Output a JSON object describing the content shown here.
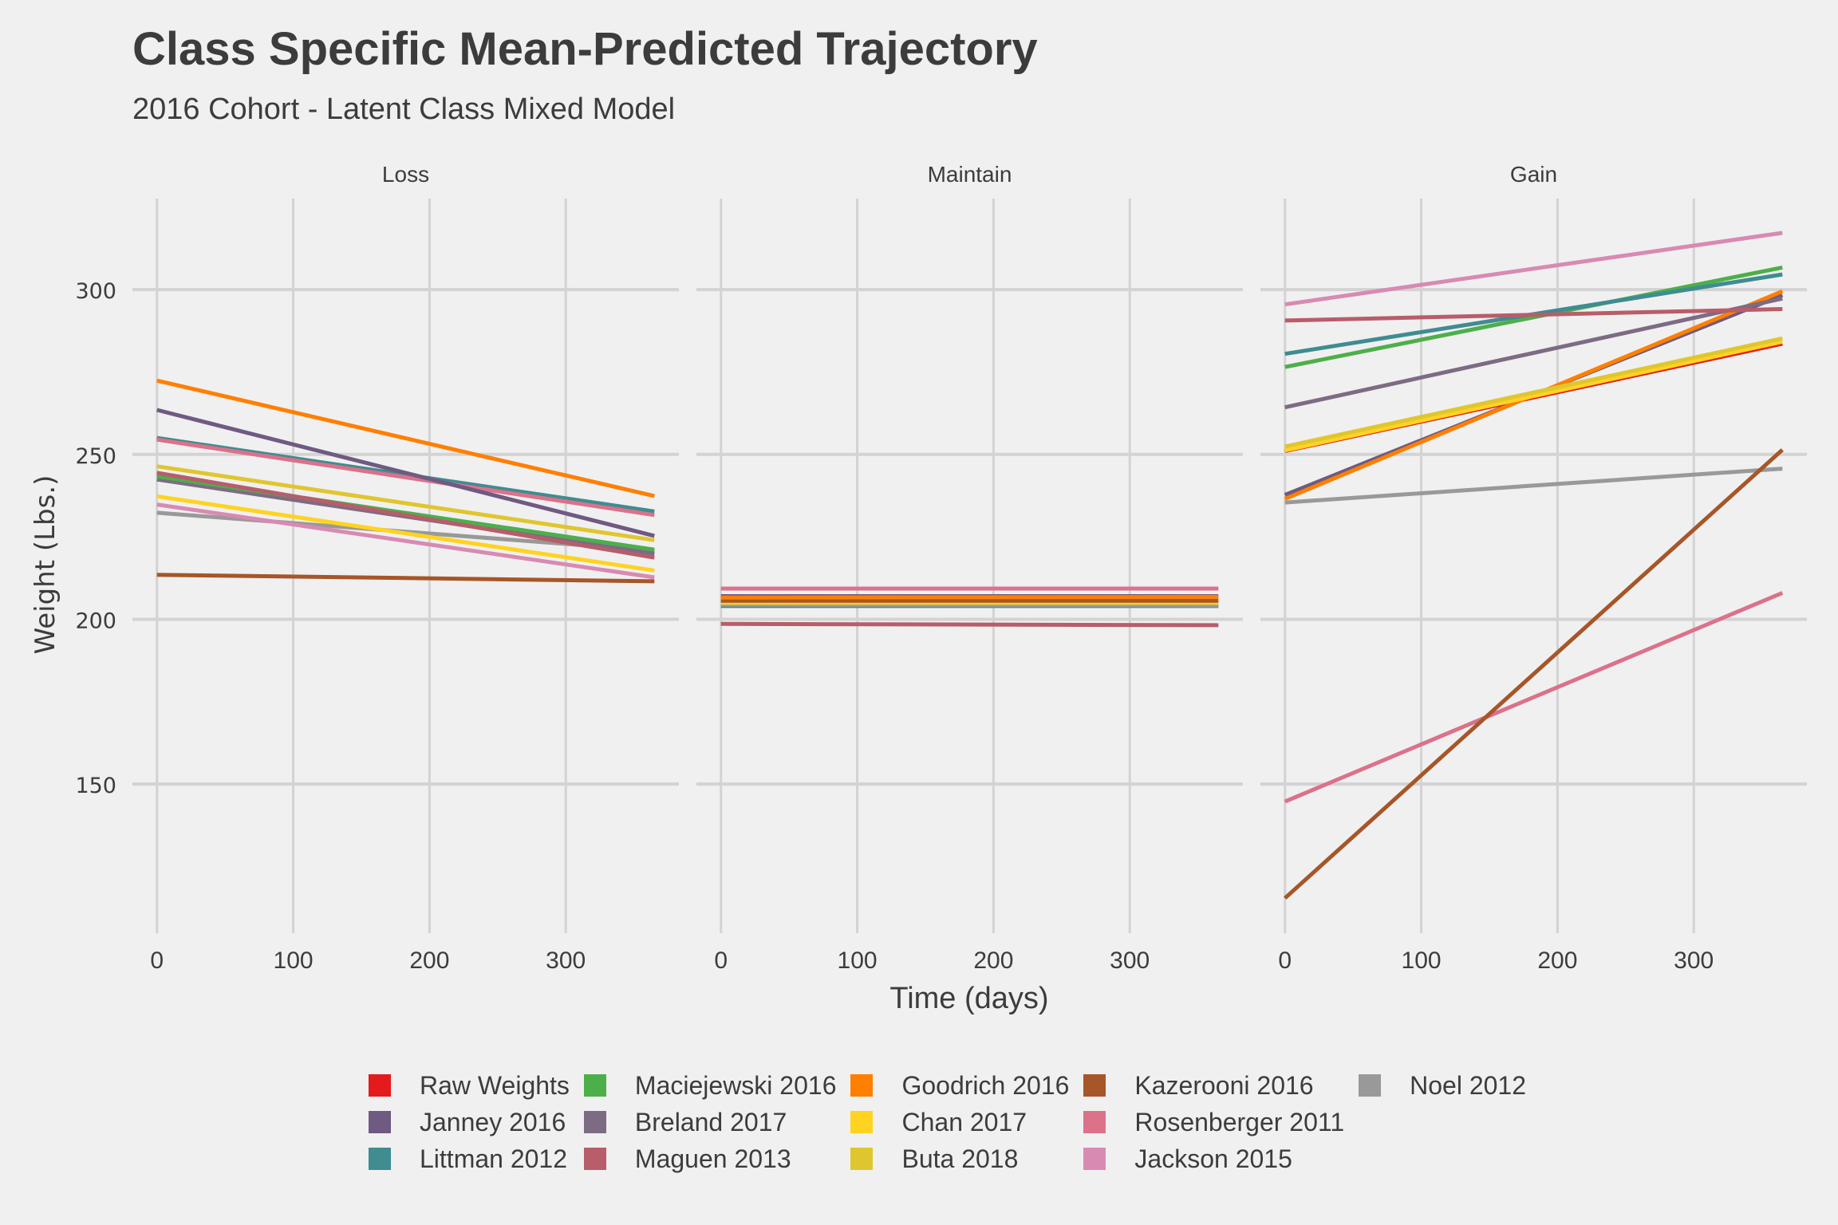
{
  "chart_data": {
    "type": "line",
    "title": "Class Specific Mean-Predicted Trajectory",
    "subtitle": "2016 Cohort - Latent Class Mixed Model",
    "xlabel": "Time (days)",
    "ylabel": "Weight (Lbs.)",
    "xlim": [
      -18,
      383
    ],
    "ylim": [
      104.8,
      327.6
    ],
    "xticks": [
      0,
      100,
      200,
      300
    ],
    "yticks": [
      150,
      200,
      250,
      300
    ],
    "grid": true,
    "legend_position": "bottom",
    "facets": [
      "Loss",
      "Maintain",
      "Gain"
    ],
    "legend": [
      {
        "name": "Raw Weights",
        "color": "#e41a1c"
      },
      {
        "name": "Janney 2016",
        "color": "#6f5a82"
      },
      {
        "name": "Littman 2012",
        "color": "#3f8c91"
      },
      {
        "name": "Maciejewski 2016",
        "color": "#4daf4a"
      },
      {
        "name": "Breland 2017",
        "color": "#7d6b84"
      },
      {
        "name": "Maguen 2013",
        "color": "#b85d6a"
      },
      {
        "name": "Goodrich 2016",
        "color": "#ff7f00"
      },
      {
        "name": "Chan 2017",
        "color": "#ffd320"
      },
      {
        "name": "Buta 2018",
        "color": "#e0c62e"
      },
      {
        "name": "Kazerooni 2016",
        "color": "#a65628"
      },
      {
        "name": "Rosenberger 2011",
        "color": "#dc718a"
      },
      {
        "name": "Jackson 2015",
        "color": "#d88ab2"
      },
      {
        "name": "Noel 2012",
        "color": "#999999"
      }
    ],
    "panels": [
      {
        "name": "Loss",
        "series": [
          {
            "name": "Kazerooni 2016",
            "x": [
              0,
              365
            ],
            "y": [
              213.5,
              211.5
            ]
          },
          {
            "name": "Noel 2012",
            "x": [
              0,
              365
            ],
            "y": [
              232.3,
              220.8
            ]
          },
          {
            "name": "Jackson 2015",
            "x": [
              0,
              365
            ],
            "y": [
              234.8,
              212.7
            ]
          },
          {
            "name": "Chan 2017",
            "x": [
              0,
              365
            ],
            "y": [
              237.3,
              214.8
            ]
          },
          {
            "name": "Breland 2017",
            "x": [
              0,
              365
            ],
            "y": [
              242.4,
              219.9
            ]
          },
          {
            "name": "Maciejewski 2016",
            "x": [
              0,
              365
            ],
            "y": [
              243.4,
              221.1
            ]
          },
          {
            "name": "Maguen 2013",
            "x": [
              0,
              365
            ],
            "y": [
              244.4,
              218.7
            ]
          },
          {
            "name": "Buta 2018",
            "x": [
              0,
              365
            ],
            "y": [
              246.4,
              224.0
            ]
          },
          {
            "name": "Littman 2012",
            "x": [
              0,
              365
            ],
            "y": [
              255.0,
              232.7
            ]
          },
          {
            "name": "Rosenberger 2011",
            "x": [
              0,
              365
            ],
            "y": [
              254.5,
              231.6
            ]
          },
          {
            "name": "Janney 2016",
            "x": [
              0,
              365
            ],
            "y": [
              263.5,
              225.3
            ]
          },
          {
            "name": "Goodrich 2016",
            "x": [
              0,
              365
            ],
            "y": [
              272.4,
              237.4
            ]
          }
        ]
      },
      {
        "name": "Maintain",
        "series": [
          {
            "name": "Littman 2012",
            "x": [
              0,
              365
            ],
            "y": [
              204.0,
              204.0
            ]
          },
          {
            "name": "Noel 2012",
            "x": [
              0,
              365
            ],
            "y": [
              204.4,
              204.2
            ]
          },
          {
            "name": "Chan 2017",
            "x": [
              0,
              365
            ],
            "y": [
              205.0,
              205.0
            ]
          },
          {
            "name": "Kazerooni 2016",
            "x": [
              0,
              365
            ],
            "y": [
              205.6,
              205.6
            ]
          },
          {
            "name": "Janney 2016",
            "x": [
              0,
              365
            ],
            "y": [
              207.0,
              207.0
            ]
          },
          {
            "name": "Goodrich 2016",
            "x": [
              0,
              365
            ],
            "y": [
              206.6,
              206.8
            ]
          },
          {
            "name": "Rosenberger 2011",
            "x": [
              0,
              365
            ],
            "y": [
              209.3,
              209.3
            ]
          },
          {
            "name": "Maguen 2013",
            "x": [
              0,
              365
            ],
            "y": [
              198.6,
              198.2
            ]
          }
        ]
      },
      {
        "name": "Gain",
        "series": [
          {
            "name": "Raw Weights",
            "x": [
              0,
              365
            ],
            "y": [
              251.0,
              283.6
            ]
          },
          {
            "name": "Noel 2012",
            "x": [
              0,
              365
            ],
            "y": [
              235.4,
              245.7
            ]
          },
          {
            "name": "Rosenberger 2011",
            "x": [
              0,
              365
            ],
            "y": [
              144.7,
              208.0
            ]
          },
          {
            "name": "Kazerooni 2016",
            "x": [
              0,
              365
            ],
            "y": [
              115.4,
              251.4
            ]
          },
          {
            "name": "Janney 2016",
            "x": [
              0,
              365
            ],
            "y": [
              237.7,
              298.3
            ]
          },
          {
            "name": "Goodrich 2016",
            "x": [
              0,
              365
            ],
            "y": [
              236.5,
              299.5
            ]
          },
          {
            "name": "Chan 2017",
            "x": [
              0,
              365
            ],
            "y": [
              251.2,
              284.2
            ]
          },
          {
            "name": "Buta 2018",
            "x": [
              0,
              365
            ],
            "y": [
              252.4,
              285.2
            ]
          },
          {
            "name": "Breland 2017",
            "x": [
              0,
              365
            ],
            "y": [
              264.3,
              297.3
            ]
          },
          {
            "name": "Maciejewski 2016",
            "x": [
              0,
              365
            ],
            "y": [
              276.5,
              306.7
            ]
          },
          {
            "name": "Littman 2012",
            "x": [
              0,
              365
            ],
            "y": [
              280.5,
              304.6
            ]
          },
          {
            "name": "Maguen 2013",
            "x": [
              0,
              365
            ],
            "y": [
              290.6,
              294.1
            ]
          },
          {
            "name": "Jackson 2015",
            "x": [
              0,
              365
            ],
            "y": [
              295.5,
              317.2
            ]
          }
        ]
      }
    ]
  }
}
